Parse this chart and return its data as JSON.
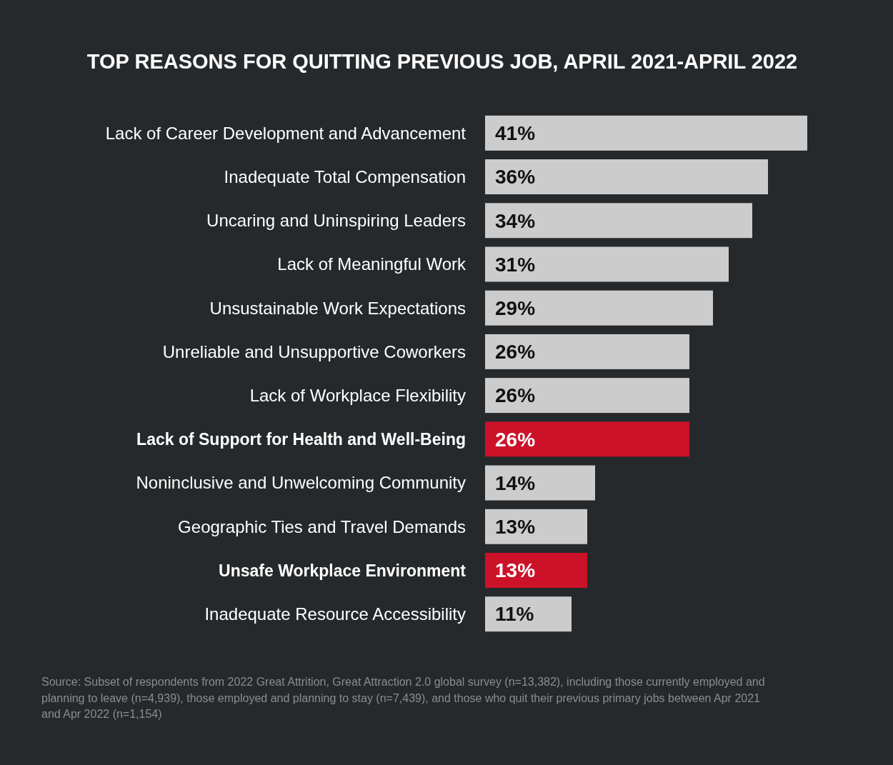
{
  "chart_data": {
    "type": "bar",
    "orientation": "horizontal",
    "title": "TOP REASONS FOR QUITTING PREVIOUS JOB, APRIL 2021-APRIL 2022",
    "categories": [
      "Lack of Career Development and Advancement",
      "Inadequate Total Compensation",
      "Uncaring and Uninspiring Leaders",
      "Lack of Meaningful Work",
      "Unsustainable Work Expectations",
      "Unreliable and Unsupportive Coworkers",
      "Lack of Workplace Flexibility",
      "Lack of Support for Health and Well-Being",
      "Noninclusive and Unwelcoming Community",
      "Geographic Ties and Travel Demands",
      "Unsafe Workplace Environment",
      "Inadequate Resource Accessibility"
    ],
    "values": [
      41,
      36,
      34,
      31,
      29,
      26,
      26,
      26,
      14,
      13,
      13,
      11
    ],
    "value_labels": [
      "41%",
      "36%",
      "34%",
      "31%",
      "29%",
      "26%",
      "26%",
      "26%",
      "14%",
      "13%",
      "13%",
      "11%"
    ],
    "colors": [
      "#cccccc",
      "#cccccc",
      "#cccccc",
      "#cccccc",
      "#cccccc",
      "#cccccc",
      "#cccccc",
      "#cc1229",
      "#cccccc",
      "#cccccc",
      "#cc1229",
      "#cccccc"
    ],
    "annotations": [
      "Source: Subset of respondents from 2022 Great Attrition, Great Attraction 2.0 global survey (n=13,382), including those currently employed and planning to leave (n=4,939), those employed and planning to stay (n=7,439), and those who quit their previous primary jobs between Apr 2021 and Apr 2022 (n=1,154)"
    ]
  }
}
